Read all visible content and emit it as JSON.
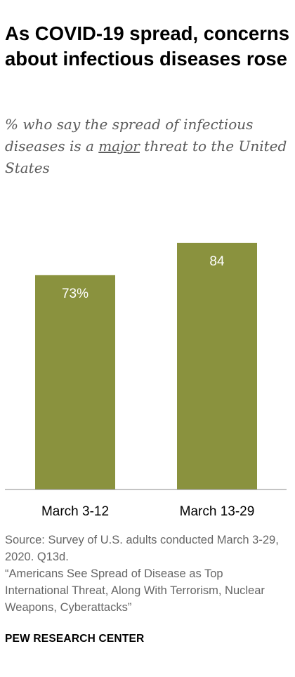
{
  "title": "As COVID-19 spread, concerns about infectious diseases rose",
  "subtitle": {
    "before": "% who say the spread of infectious diseases is a ",
    "emphasis": "major",
    "after": " threat to the United States"
  },
  "chart_data": {
    "type": "bar",
    "categories": [
      "March 3-12",
      "March 13-29"
    ],
    "values": [
      73,
      84
    ],
    "data_labels": [
      "73%",
      "84"
    ],
    "title": "As COVID-19 spread, concerns about infectious diseases rose",
    "xlabel": "",
    "ylabel": "",
    "ylim": [
      0,
      100
    ],
    "grid": false,
    "legend": "none",
    "bar_color": "#8a923e",
    "label_color": "#ffffff"
  },
  "source": {
    "line1": "Source: Survey of U.S. adults conducted March 3-29, 2020. Q13d.",
    "line2": "“Americans See Spread of Disease as Top International Threat, Along With Terrorism, Nuclear Weapons, Cyberattacks”"
  },
  "brand": "PEW RESEARCH CENTER"
}
